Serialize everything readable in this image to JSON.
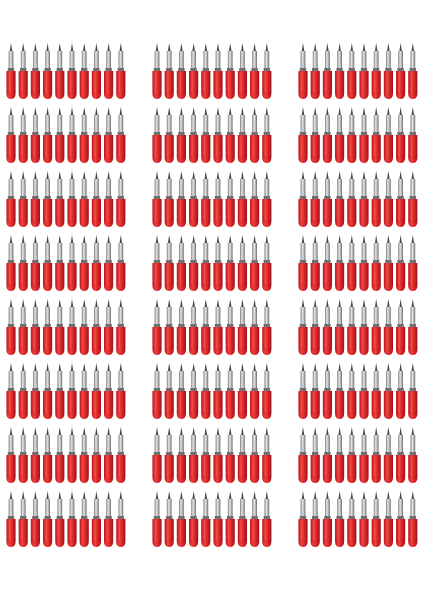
{
  "image": {
    "subject": "cutting-blade",
    "blade": {
      "cap_color": "#e0282b",
      "cap_highlight": "#f25a55",
      "cap_shadow": "#a8141a",
      "metal_color": "#c9c9c9",
      "metal_dark": "#6f6f6f",
      "tip_color": "#4a4a4a"
    },
    "background": "#ffffff"
  }
}
